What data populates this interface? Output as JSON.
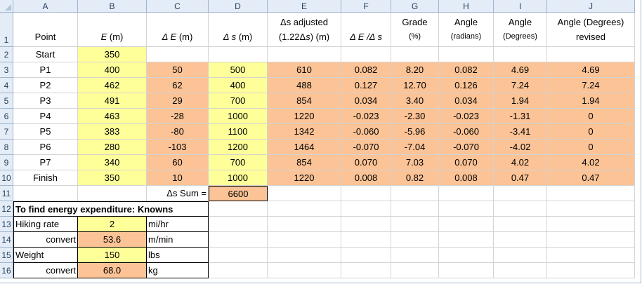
{
  "columns": [
    "A",
    "B",
    "C",
    "D",
    "E",
    "F",
    "G",
    "H",
    "I",
    "J"
  ],
  "rows": [
    "1",
    "2",
    "3",
    "4",
    "5",
    "6",
    "7",
    "8",
    "9",
    "10",
    "11",
    "12",
    "13",
    "14",
    "15",
    "16"
  ],
  "headers": {
    "point": "Point",
    "e_var": "E",
    "e_unit": " (m)",
    "de_var": "Δ E",
    "de_unit": " (m)",
    "ds_var": "Δ s",
    "ds_unit": " (m)",
    "ds_adj_l1": "Δs adjusted",
    "ds_adj_l2a": "(1.22Δ",
    "ds_adj_l2b": "s",
    "ds_adj_l2c": ") (m)",
    "ratio": "Δ E /Δ s",
    "grade_l1": "Grade",
    "grade_l2": "(%)",
    "rad_l1": "Angle",
    "rad_l2": "(radians)",
    "deg_l1": "Angle",
    "deg_l2": "(Degrees)",
    "rev_l1": "Angle (Degrees)",
    "rev_l2": "revised"
  },
  "start_row": {
    "point": "Start",
    "e": "350"
  },
  "data_rows": [
    {
      "point": "P1",
      "e": "400",
      "de": "50",
      "ds": "500",
      "ds_adj": "610",
      "ratio": "0.082",
      "grade": "8.20",
      "rad": "0.082",
      "deg": "4.69",
      "rev": "4.69"
    },
    {
      "point": "P2",
      "e": "462",
      "de": "62",
      "ds": "400",
      "ds_adj": "488",
      "ratio": "0.127",
      "grade": "12.70",
      "rad": "0.126",
      "deg": "7.24",
      "rev": "7.24"
    },
    {
      "point": "P3",
      "e": "491",
      "de": "29",
      "ds": "700",
      "ds_adj": "854",
      "ratio": "0.034",
      "grade": "3.40",
      "rad": "0.034",
      "deg": "1.94",
      "rev": "1.94"
    },
    {
      "point": "P4",
      "e": "463",
      "de": "-28",
      "ds": "1000",
      "ds_adj": "1220",
      "ratio": "-0.023",
      "grade": "-2.30",
      "rad": "-0.023",
      "deg": "-1.31",
      "rev": "0"
    },
    {
      "point": "P5",
      "e": "383",
      "de": "-80",
      "ds": "1100",
      "ds_adj": "1342",
      "ratio": "-0.060",
      "grade": "-5.96",
      "rad": "-0.060",
      "deg": "-3.41",
      "rev": "0"
    },
    {
      "point": "P6",
      "e": "280",
      "de": "-103",
      "ds": "1200",
      "ds_adj": "1464",
      "ratio": "-0.070",
      "grade": "-7.04",
      "rad": "-0.070",
      "deg": "-4.02",
      "rev": "0"
    },
    {
      "point": "P7",
      "e": "340",
      "de": "60",
      "ds": "700",
      "ds_adj": "854",
      "ratio": "0.070",
      "grade": "7.03",
      "rad": "0.070",
      "deg": "4.02",
      "rev": "4.02"
    },
    {
      "point": "Finish",
      "e": "350",
      "de": "10",
      "ds": "1000",
      "ds_adj": "1220",
      "ratio": "0.008",
      "grade": "0.82",
      "rad": "0.008",
      "deg": "0.47",
      "rev": "0.47"
    }
  ],
  "sum": {
    "label": "Δs Sum =",
    "value": "6600"
  },
  "knowns": {
    "title": "To find energy expenditure: Knowns",
    "items": [
      {
        "label": "Hiking rate",
        "value": "2",
        "unit": "mi/hr"
      },
      {
        "label": "convert",
        "value": "53.6",
        "unit": "m/min"
      },
      {
        "label": "Weight",
        "value": "150",
        "unit": "lbs"
      },
      {
        "label": "convert",
        "value": "68.0",
        "unit": "kg"
      }
    ]
  },
  "colors": {
    "input_yellow": "#ffff99",
    "calc_orange": "#fbc396",
    "header_blue": "#e4ecf7"
  }
}
